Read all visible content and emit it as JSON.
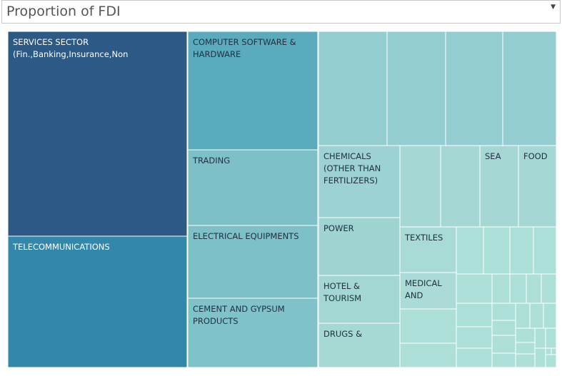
{
  "header": {
    "title": "Proportion of FDI",
    "dropdown_icon": "caret-down-icon"
  },
  "chart_data": {
    "type": "treemap",
    "title": "Proportion of FDI",
    "color_scale": {
      "high": "#2c5985",
      "low": "#a8dbd6"
    },
    "tiles": [
      {
        "label_lines": [
          "SERVICES SECTOR",
          "(Fin.,Banking,Insurance,Non"
        ],
        "value": 22.2,
        "color": "#2c5985",
        "text_color": "#ffffff"
      },
      {
        "label_lines": [
          "TELECOMMUNICATIONS"
        ],
        "value": 14.0,
        "color": "#3387aa",
        "text_color": "#ffffff"
      },
      {
        "label_lines": [
          "COMPUTER SOFTWARE &",
          "HARDWARE"
        ],
        "value": 7.3,
        "color": "#5aabbe",
        "text_color": "#1f2f3f"
      },
      {
        "label_lines": [
          "TRADING"
        ],
        "value": 4.9,
        "color": "#7ec0c8",
        "text_color": "#1f2f3f"
      },
      {
        "label_lines": [
          "ELECTRICAL EQUIPMENTS"
        ],
        "value": 4.8,
        "color": "#7ec0c8",
        "text_color": "#1f2f3f"
      },
      {
        "label_lines": [
          "CEMENT AND GYPSUM",
          "PRODUCTS"
        ],
        "value": 4.4,
        "color": "#80c2c9",
        "text_color": "#1f2f3f"
      },
      {
        "label_lines": [],
        "value": 2.4,
        "color": "#93cdd0",
        "text_color": "#1f2f3f"
      },
      {
        "label_lines": [],
        "value": 2.0,
        "color": "#93cdd0",
        "text_color": "#1f2f3f"
      },
      {
        "label_lines": [],
        "value": 2.0,
        "color": "#93cdd0",
        "text_color": "#1f2f3f"
      },
      {
        "label_lines": [],
        "value": 1.8,
        "color": "#93cdd0",
        "text_color": "#1f2f3f"
      },
      {
        "label_lines": [
          "CHEMICALS",
          "(OTHER THAN",
          "FERTILIZERS)"
        ],
        "value": 1.8,
        "color": "#9dd2d2",
        "text_color": "#1f2f3f"
      },
      {
        "label_lines": [
          "POWER"
        ],
        "value": 1.4,
        "color": "#9fd4d3",
        "text_color": "#1f2f3f"
      },
      {
        "label_lines": [
          "HOTEL &",
          "TOURISM"
        ],
        "value": 1.2,
        "color": "#a3d7d4",
        "text_color": "#1f2f3f"
      },
      {
        "label_lines": [
          "DRUGS &"
        ],
        "value": 1.0,
        "color": "#a6d8d4",
        "text_color": "#1f2f3f"
      },
      {
        "label_lines": [],
        "value": 1.0,
        "color": "#a5d8d5",
        "text_color": "#1f2f3f"
      },
      {
        "label_lines": [],
        "value": 0.9,
        "color": "#a5d8d5",
        "text_color": "#1f2f3f"
      },
      {
        "label_lines": [
          "SEA"
        ],
        "value": 0.9,
        "color": "#a5d8d5",
        "text_color": "#1f2f3f"
      },
      {
        "label_lines": [
          "FOOD"
        ],
        "value": 0.9,
        "color": "#a5d8d5",
        "text_color": "#1f2f3f"
      },
      {
        "label_lines": [
          "TEXTILES"
        ],
        "value": 0.8,
        "color": "#a8dad6",
        "text_color": "#1f2f3f"
      },
      {
        "label_lines": [
          "MEDICAL",
          "AND"
        ],
        "value": 0.7,
        "color": "#aadbd7",
        "text_color": "#1f2f3f"
      }
    ]
  }
}
